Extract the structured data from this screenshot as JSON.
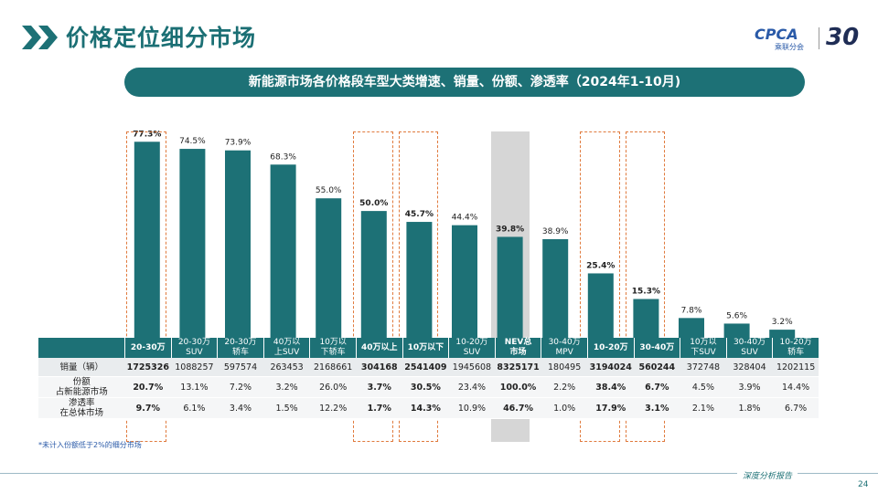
{
  "header": {
    "title": "价格定位细分市场"
  },
  "logo": {
    "name": "CPCA",
    "sub": "乘联分会",
    "anniv": "30"
  },
  "banner": {
    "text": "新能源市场各价格段车型大类增速、销量、份额、渗透率（2024年1-10月)"
  },
  "chart_data": {
    "type": "bar",
    "categories": [
      "20-30万",
      "20-30万 SUV",
      "20-30万 轿车",
      "40万以 上SUV",
      "10万以 下轿车",
      "40万以上",
      "10万以下",
      "10-20万 SUV",
      "NEV总 市场",
      "30-40万 MPV",
      "10-20万",
      "30-40万",
      "10万以 下SUV",
      "30-40万 SUV",
      "10-20万 轿车"
    ],
    "values": [
      77.3,
      74.5,
      73.9,
      68.3,
      55.0,
      50.0,
      45.7,
      44.4,
      39.8,
      38.9,
      25.4,
      15.3,
      7.8,
      5.6,
      3.2
    ],
    "value_labels": [
      "77.3%",
      "74.5%",
      "73.9%",
      "68.3%",
      "55.0%",
      "50.0%",
      "45.7%",
      "44.4%",
      "39.8%",
      "38.9%",
      "25.4%",
      "15.3%",
      "7.8%",
      "5.6%",
      "3.2%"
    ],
    "bold": [
      true,
      false,
      false,
      false,
      false,
      true,
      true,
      false,
      true,
      false,
      true,
      true,
      false,
      false,
      false
    ],
    "highlight": [
      true,
      false,
      false,
      false,
      false,
      true,
      true,
      false,
      false,
      false,
      true,
      true,
      false,
      false,
      false
    ],
    "ylim": [
      0,
      90
    ],
    "bar_color": "#1d7176",
    "highlight_color": "#e07a3d",
    "title": "",
    "xlabel": "",
    "ylabel": ""
  },
  "table": {
    "headers": [
      [
        "20-30万"
      ],
      [
        "20-30万",
        "SUV"
      ],
      [
        "20-30万",
        "轿车"
      ],
      [
        "40万以",
        "上SUV"
      ],
      [
        "10万以",
        "下轿车"
      ],
      [
        "40万以上"
      ],
      [
        "10万以下"
      ],
      [
        "10-20万",
        "SUV"
      ],
      [
        "NEV总",
        "市场"
      ],
      [
        "30-40万",
        "MPV"
      ],
      [
        "10-20万"
      ],
      [
        "30-40万"
      ],
      [
        "10万以",
        "下SUV"
      ],
      [
        "30-40万",
        "SUV"
      ],
      [
        "10-20万",
        "轿车"
      ]
    ],
    "rows": [
      {
        "label": [
          "销量（辆）"
        ],
        "cells": [
          "1725326",
          "1088257",
          "597574",
          "263453",
          "2168661",
          "304168",
          "2541409",
          "1945608",
          "8325171",
          "180495",
          "3194024",
          "560244",
          "372748",
          "328404",
          "1202115"
        ]
      },
      {
        "label": [
          "份额",
          "占新能源市场"
        ],
        "cells": [
          "20.7%",
          "13.1%",
          "7.2%",
          "3.2%",
          "26.0%",
          "3.7%",
          "30.5%",
          "23.4%",
          "100.0%",
          "2.2%",
          "38.4%",
          "6.7%",
          "4.5%",
          "3.9%",
          "14.4%"
        ]
      },
      {
        "label": [
          "渗透率",
          "在总体市场"
        ],
        "cells": [
          "9.7%",
          "6.1%",
          "3.4%",
          "1.5%",
          "12.2%",
          "1.7%",
          "14.3%",
          "10.9%",
          "46.7%",
          "1.0%",
          "17.9%",
          "3.1%",
          "2.1%",
          "1.8%",
          "6.7%"
        ]
      }
    ]
  },
  "footnote": "*未计入份额低于2%的细分市场",
  "footer": {
    "text": "深度分析报告",
    "page": "24"
  }
}
